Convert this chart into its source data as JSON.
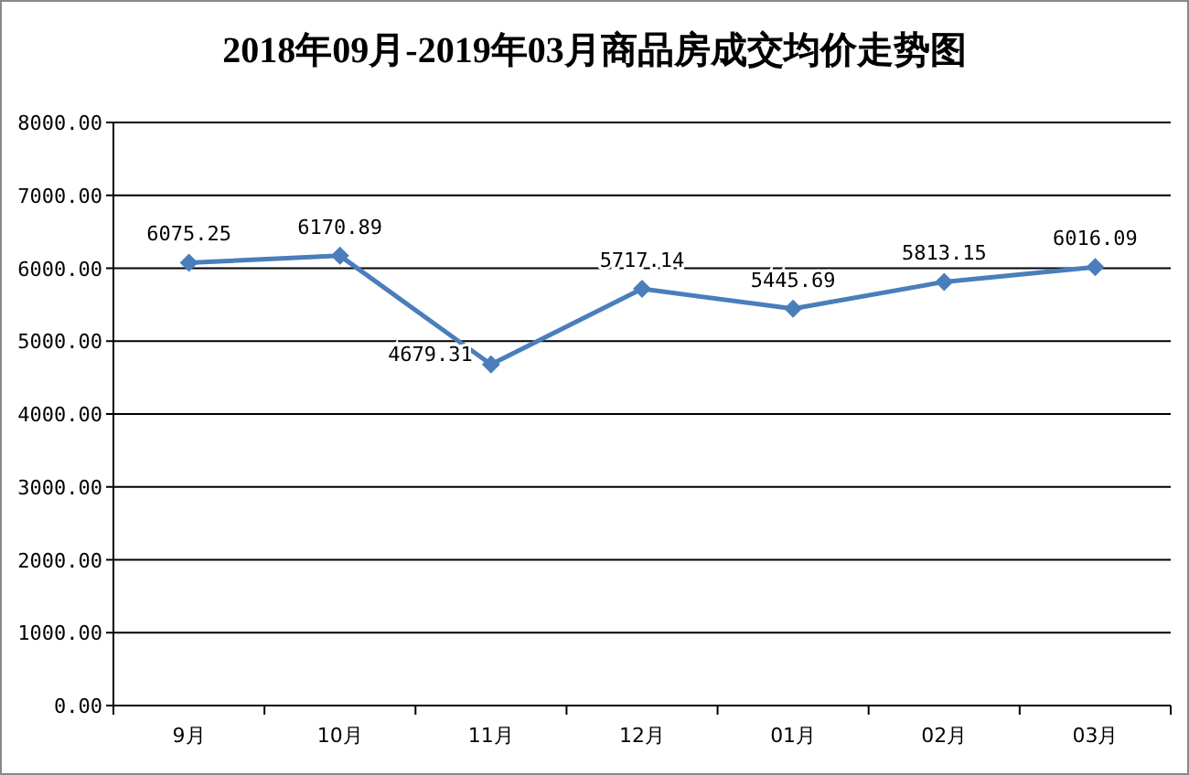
{
  "chart_data": {
    "type": "line",
    "title": "2018年09月-2019年03月商品房成交均价走势图",
    "categories": [
      "9月",
      "10月",
      "11月",
      "12月",
      "01月",
      "02月",
      "03月"
    ],
    "series": [
      {
        "color": "#4a7ebb",
        "values": [
          6075.25,
          6170.89,
          4679.31,
          5717.14,
          5445.69,
          5813.15,
          6016.09
        ]
      }
    ],
    "ylim": [
      0,
      8000
    ],
    "yticks": [
      {
        "value": 0,
        "label": "0.00"
      },
      {
        "value": 1000,
        "label": "1000.00"
      },
      {
        "value": 2000,
        "label": "2000.00"
      },
      {
        "value": 3000,
        "label": "3000.00"
      },
      {
        "value": 4000,
        "label": "4000.00"
      },
      {
        "value": 5000,
        "label": "5000.00"
      },
      {
        "value": 6000,
        "label": "6000.00"
      },
      {
        "value": 7000,
        "label": "7000.00"
      },
      {
        "value": 8000,
        "label": "8000.00"
      }
    ],
    "grid": "y",
    "marker": "diamond",
    "data_labels": true
  }
}
